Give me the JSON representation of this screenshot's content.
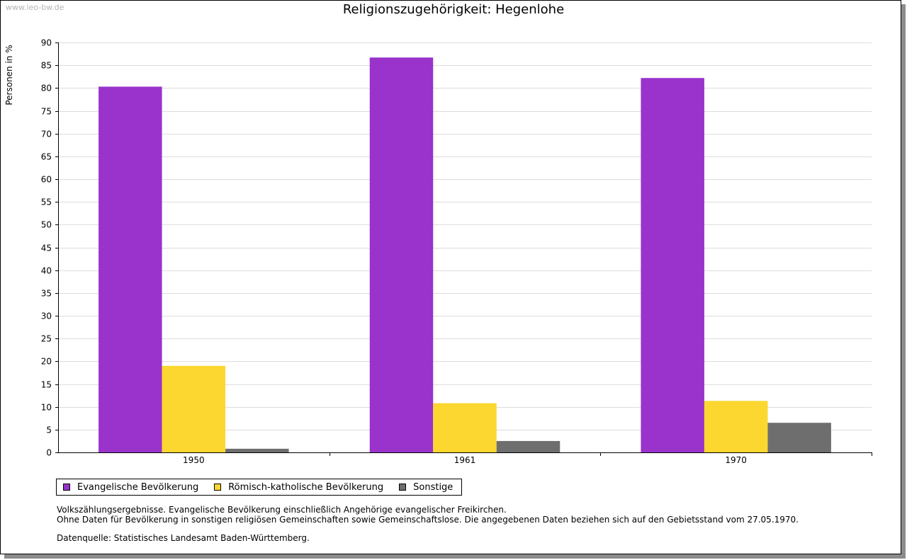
{
  "watermark": "www.leo-bw.de",
  "chart_data": {
    "type": "bar",
    "title": "Religionszugehörigkeit: Hegenlohe",
    "ylabel": "Personen in %",
    "xlabel": "",
    "ylim": [
      0,
      90
    ],
    "ytick_step": 5,
    "grid": true,
    "categories": [
      "1950",
      "1961",
      "1970"
    ],
    "series": [
      {
        "name": "Evangelische Bevölkerung",
        "color": "#9933cc",
        "values": [
          80.3,
          86.7,
          82.2
        ]
      },
      {
        "name": "Römisch-katholische Bevölkerung",
        "color": "#fcd72f",
        "values": [
          19.0,
          10.8,
          11.3
        ]
      },
      {
        "name": "Sonstige",
        "color": "#6e6e6e",
        "values": [
          0.8,
          2.5,
          6.5
        ]
      }
    ],
    "legend_position": "bottom-left"
  },
  "notes": {
    "line1": "Volkszählungsergebnisse. Evangelische Bevölkerung einschließlich Angehörige evangelischer Freikirchen.",
    "line2": "Ohne Daten für Bevölkerung in sonstigen religiösen Gemeinschaften sowie Gemeinschaftslose. Die angegebenen Daten beziehen sich auf den Gebietsstand vom 27.05.1970.",
    "source": "Datenquelle: Statistisches Landesamt Baden-Württemberg."
  }
}
